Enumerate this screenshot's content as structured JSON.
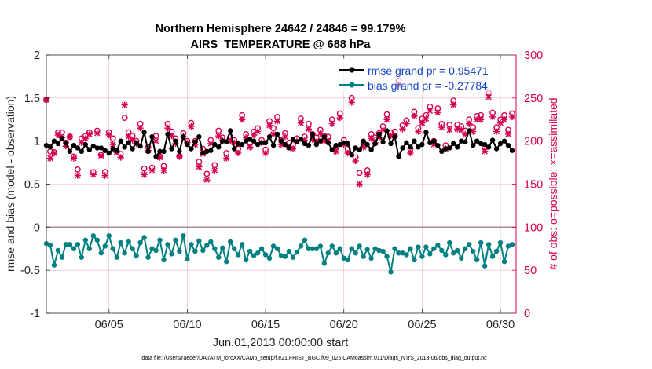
{
  "chart_data": {
    "type": "line",
    "title": "Northern Hemisphere 24642 / 24846 = 99.179%",
    "subtitle": "AIRS_TEMPERATURE @ 688 hPa",
    "xlabel": "Jun.01,2013 00:00:00 start",
    "ylabel": "rmse and bias (model - observation)",
    "y2label": "# of obs: o=possible; ×=assimilated",
    "footer": "data file: /Users/raeder/DAI/ATM_forcXX/CAM6_setup/f.e21.FHIST_BGC.f09_025.CAM6assim.011/Diags_NTrS_2013-06/obs_diag_output.nc",
    "xlim": [
      1.0,
      31.0
    ],
    "ylim": [
      -1,
      2
    ],
    "y2lim": [
      0,
      300
    ],
    "x_tick_labels": [
      "06/05",
      "06/10",
      "06/15",
      "06/20",
      "06/25",
      "06/30"
    ],
    "x_tick_values": [
      5,
      10,
      15,
      20,
      25,
      30
    ],
    "y_tick_labels": [
      "-1",
      "-0.5",
      "0",
      "0.5",
      "1",
      "1.5",
      "2"
    ],
    "y2_tick_labels": [
      "0",
      "50",
      "100",
      "150",
      "200",
      "250",
      "300"
    ],
    "grid": true,
    "legend_position": "top-right",
    "legend": {
      "rmse": "rmse grand pr = 0.95471",
      "bias": "bias grand pr = -0.27784"
    },
    "colors": {
      "rmse": "#000000",
      "bias": "#008080",
      "obs": "#d5004f",
      "zero_line": "#b08c8c",
      "grid": "#e6b8c4"
    },
    "x": [
      1.0,
      1.25,
      1.5,
      1.75,
      2.0,
      2.25,
      2.5,
      2.75,
      3.0,
      3.25,
      3.5,
      3.75,
      4.0,
      4.25,
      4.5,
      4.75,
      5.0,
      5.25,
      5.5,
      5.75,
      6.0,
      6.25,
      6.5,
      6.75,
      7.0,
      7.25,
      7.5,
      7.75,
      8.0,
      8.25,
      8.5,
      8.75,
      9.0,
      9.25,
      9.5,
      9.75,
      10.0,
      10.25,
      10.5,
      10.75,
      11.0,
      11.25,
      11.5,
      11.75,
      12.0,
      12.25,
      12.5,
      12.75,
      13.0,
      13.25,
      13.5,
      13.75,
      14.0,
      14.25,
      14.5,
      14.75,
      15.0,
      15.25,
      15.5,
      15.75,
      16.0,
      16.25,
      16.5,
      16.75,
      17.0,
      17.25,
      17.5,
      17.75,
      18.0,
      18.25,
      18.5,
      18.75,
      19.0,
      19.25,
      19.5,
      19.75,
      20.0,
      20.25,
      20.5,
      20.75,
      21.0,
      21.25,
      21.5,
      21.75,
      22.0,
      22.25,
      22.5,
      22.75,
      23.0,
      23.25,
      23.5,
      23.75,
      24.0,
      24.25,
      24.5,
      24.75,
      25.0,
      25.25,
      25.5,
      25.75,
      26.0,
      26.25,
      26.5,
      26.75,
      27.0,
      27.25,
      27.5,
      27.75,
      28.0,
      28.25,
      28.5,
      28.75,
      29.0,
      29.25,
      29.5,
      29.75,
      30.0,
      30.25,
      30.5,
      30.75
    ],
    "series": [
      {
        "name": "rmse",
        "values": [
          0.95,
          0.93,
          1.0,
          0.97,
          1.03,
          0.98,
          0.88,
          0.95,
          0.92,
          0.88,
          0.96,
          0.9,
          0.94,
          0.92,
          0.92,
          0.89,
          0.86,
          0.91,
          0.89,
          1.0,
          0.93,
          0.98,
          0.91,
          0.98,
          0.94,
          1.1,
          0.88,
          1.05,
          0.82,
          0.88,
          0.88,
          1.08,
          0.91,
          1.0,
          0.88,
          1.05,
          0.96,
          0.91,
          0.99,
          1.05,
          0.86,
          0.88,
          0.89,
          0.96,
          0.93,
          1.0,
          0.99,
          1.12,
          0.91,
          0.97,
          0.96,
          1.0,
          1.02,
          1.0,
          0.96,
          0.98,
          0.98,
          1.05,
          0.95,
          1.08,
          1.0,
          0.96,
          0.92,
          1.02,
          0.99,
          1.02,
          0.97,
          0.95,
          1.08,
          0.96,
          1.0,
          1.05,
          0.98,
          0.9,
          0.95,
          0.96,
          0.98,
          0.97,
          0.84,
          0.92,
          0.9,
          1.0,
          0.96,
          0.9,
          0.97,
          1.08,
          0.99,
          1.12,
          0.97,
          1.05,
          0.82,
          0.92,
          0.98,
          0.93,
          1.0,
          0.93,
          0.96,
          1.1,
          0.98,
          1.0,
          0.95,
          0.88,
          0.91,
          0.92,
          0.97,
          0.93,
          1.0,
          0.99,
          1.12,
          0.95,
          1.0,
          0.97,
          0.96,
          0.93,
          1.01,
          0.91,
          0.97,
          1.0,
          0.95,
          0.89
        ]
      },
      {
        "name": "bias",
        "values": [
          -0.19,
          -0.21,
          -0.44,
          -0.27,
          -0.35,
          -0.2,
          -0.2,
          -0.25,
          -0.2,
          -0.35,
          -0.15,
          -0.25,
          -0.1,
          -0.15,
          -0.3,
          -0.22,
          -0.1,
          -0.25,
          -0.35,
          -0.18,
          -0.3,
          -0.17,
          -0.25,
          -0.33,
          -0.18,
          -0.12,
          -0.35,
          -0.25,
          -0.27,
          -0.15,
          -0.38,
          -0.2,
          -0.31,
          -0.15,
          -0.28,
          -0.1,
          -0.37,
          -0.2,
          -0.28,
          -0.16,
          -0.27,
          -0.21,
          -0.17,
          -0.25,
          -0.35,
          -0.24,
          -0.4,
          -0.17,
          -0.25,
          -0.32,
          -0.2,
          -0.38,
          -0.28,
          -0.33,
          -0.3,
          -0.25,
          -0.32,
          -0.36,
          -0.22,
          -0.25,
          -0.33,
          -0.34,
          -0.28,
          -0.35,
          -0.29,
          -0.22,
          -0.15,
          -0.25,
          -0.25,
          -0.25,
          -0.22,
          -0.42,
          -0.3,
          -0.22,
          -0.3,
          -0.25,
          -0.36,
          -0.38,
          -0.25,
          -0.3,
          -0.22,
          -0.34,
          -0.26,
          -0.36,
          -0.25,
          -0.27,
          -0.28,
          -0.34,
          -0.52,
          -0.25,
          -0.3,
          -0.3,
          -0.32,
          -0.25,
          -0.38,
          -0.23,
          -0.34,
          -0.23,
          -0.31,
          -0.25,
          -0.21,
          -0.27,
          -0.32,
          -0.18,
          -0.3,
          -0.27,
          -0.36,
          -0.25,
          -0.2,
          -0.28,
          -0.38,
          -0.18,
          -0.45,
          -0.2,
          -0.34,
          -0.28,
          -0.18,
          -0.4,
          -0.22,
          -0.2
        ]
      },
      {
        "name": "obs possible",
        "values": [
          248,
          188,
          187,
          210,
          210,
          198,
          205,
          182,
          167,
          203,
          206,
          210,
          164,
          212,
          184,
          164,
          210,
          203,
          188,
          185,
          227,
          210,
          206,
          200,
          220,
          168,
          193,
          169,
          206,
          182,
          171,
          220,
          211,
          203,
          182,
          209,
          200,
          221,
          200,
          176,
          191,
          162,
          201,
          172,
          212,
          204,
          186,
          205,
          201,
          191,
          230,
          208,
          198,
          211,
          215,
          201,
          190,
          223,
          215,
          228,
          201,
          209,
          198,
          196,
          203,
          226,
          205,
          220,
          208,
          204,
          213,
          206,
          205,
          225,
          193,
          232,
          201,
          191,
          250,
          181,
          163,
          198,
          166,
          208,
          204,
          209,
          217,
          231,
          210,
          211,
          270,
          218,
          224,
          191,
          234,
          215,
          226,
          230,
          240,
          200,
          238,
          220,
          195,
          219,
          247,
          219,
          217,
          212,
          225,
          216,
          229,
          230,
          193,
          256,
          233,
          216,
          225,
          230,
          213,
          232
        ]
      },
      {
        "name": "obs assimilated",
        "values": [
          248,
          180,
          186,
          207,
          204,
          194,
          205,
          180,
          160,
          198,
          203,
          208,
          161,
          209,
          183,
          160,
          207,
          196,
          187,
          181,
          242,
          205,
          201,
          197,
          215,
          161,
          189,
          166,
          200,
          181,
          166,
          215,
          206,
          197,
          182,
          205,
          198,
          217,
          196,
          170,
          185,
          155,
          197,
          166,
          206,
          201,
          180,
          200,
          198,
          186,
          225,
          204,
          193,
          207,
          211,
          198,
          186,
          218,
          208,
          223,
          196,
          205,
          193,
          191,
          200,
          221,
          201,
          214,
          202,
          199,
          209,
          200,
          200,
          220,
          188,
          227,
          196,
          186,
          245,
          177,
          150,
          193,
          161,
          203,
          198,
          204,
          213,
          225,
          206,
          206,
          265,
          214,
          220,
          186,
          229,
          211,
          221,
          226,
          235,
          196,
          233,
          216,
          191,
          213,
          242,
          214,
          213,
          208,
          220,
          211,
          225,
          225,
          188,
          251,
          228,
          211,
          221,
          225,
          208,
          228
        ]
      }
    ]
  }
}
